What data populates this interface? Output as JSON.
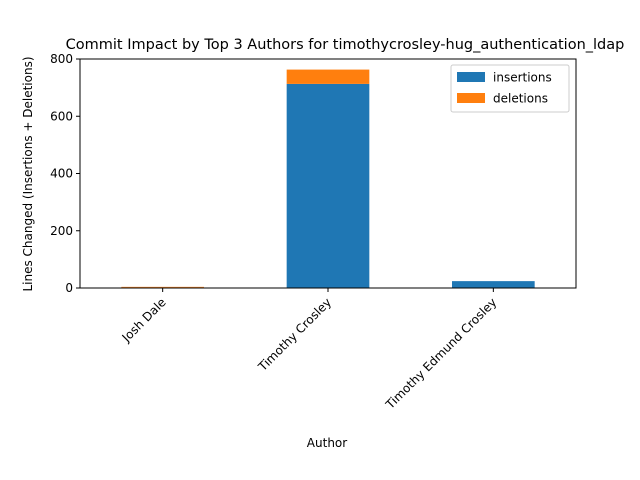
{
  "chart_data": {
    "type": "bar",
    "stacked": true,
    "title": "Commit Impact by Top 3 Authors for timothycrosley-hug_authentication_ldap",
    "xlabel": "Author",
    "ylabel": "Lines Changed (Insertions + Deletions)",
    "categories": [
      "Josh Dale",
      "Timothy Crosley",
      "Timothy Edmund Crosley"
    ],
    "series": [
      {
        "name": "insertions",
        "color": "#1f77b4",
        "values": [
          2,
          713,
          24
        ]
      },
      {
        "name": "deletions",
        "color": "#ff7f0e",
        "values": [
          2,
          50,
          0
        ]
      }
    ],
    "ylim": [
      0,
      800
    ],
    "yticks": [
      0,
      200,
      400,
      600,
      800
    ],
    "grid": false,
    "legend_position": "top-right"
  }
}
